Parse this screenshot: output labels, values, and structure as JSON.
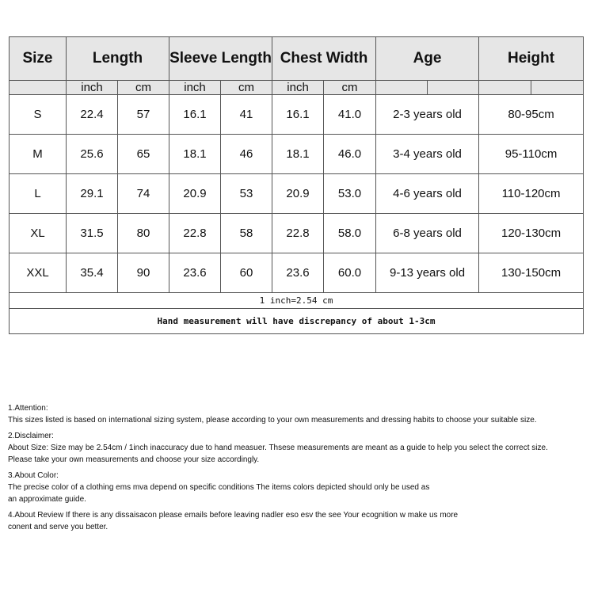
{
  "table": {
    "headers": [
      "Size",
      "Length",
      "Sleeve Length",
      "Chest Width",
      "Age",
      "Height"
    ],
    "units": [
      "inch",
      "cm",
      "inch",
      "cm",
      "inch",
      "cm"
    ],
    "rows": [
      {
        "size": "S",
        "length_in": "22.4",
        "length_cm": "57",
        "sleeve_in": "16.1",
        "sleeve_cm": "41",
        "chest_in": "16.1",
        "chest_cm": "41.0",
        "age": "2-3 years old",
        "height": "80-95cm"
      },
      {
        "size": "M",
        "length_in": "25.6",
        "length_cm": "65",
        "sleeve_in": "18.1",
        "sleeve_cm": "46",
        "chest_in": "18.1",
        "chest_cm": "46.0",
        "age": "3-4 years old",
        "height": "95-110cm"
      },
      {
        "size": "L",
        "length_in": "29.1",
        "length_cm": "74",
        "sleeve_in": "20.9",
        "sleeve_cm": "53",
        "chest_in": "20.9",
        "chest_cm": "53.0",
        "age": "4-6 years old",
        "height": "110-120cm"
      },
      {
        "size": "XL",
        "length_in": "31.5",
        "length_cm": "80",
        "sleeve_in": "22.8",
        "sleeve_cm": "58",
        "chest_in": "22.8",
        "chest_cm": "58.0",
        "age": "6-8 years old",
        "height": "120-130cm"
      },
      {
        "size": "XXL",
        "length_in": "35.4",
        "length_cm": "90",
        "sleeve_in": "23.6",
        "sleeve_cm": "60",
        "chest_in": "23.6",
        "chest_cm": "60.0",
        "age": "9-13 years old",
        "height": "130-150cm"
      }
    ],
    "conversion_note": "1 inch=2.54 cm",
    "discrepancy_note": "Hand measurement will have discrepancy of about 1-3cm"
  },
  "notes": [
    {
      "title": "1.Attention:",
      "lines": [
        "This sizes listed is based on international sizing system, please according to your own measurements and dressing habits to choose your suitable size."
      ]
    },
    {
      "title": "2.Disclaimer:",
      "lines": [
        "About Size: Size may be 2.54cm / 1inch inaccuracy due to hand measuer. Thsese measurements are meant as a guide to help you select the correct size.",
        "Please take your own measurements and choose your size accordingly."
      ]
    },
    {
      "title": "3.About Color:",
      "lines": [
        "The precise color of a clothing ems mva depend on specific conditions The items colors depicted should only be used as",
        "an approximate guide."
      ]
    },
    {
      "title": "4.About Review If there is any dissaisacon please emails before leaving nadler eso esv the see Your ecognition w make us more",
      "lines": [
        "conent and serve you better."
      ]
    }
  ]
}
